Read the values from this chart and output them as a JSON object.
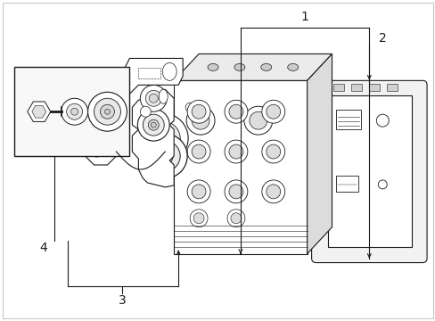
{
  "bg_color": "#ffffff",
  "line_color": "#1a1a1a",
  "figsize": [
    4.89,
    3.6
  ],
  "dpi": 100,
  "border_color": "#cccccc"
}
